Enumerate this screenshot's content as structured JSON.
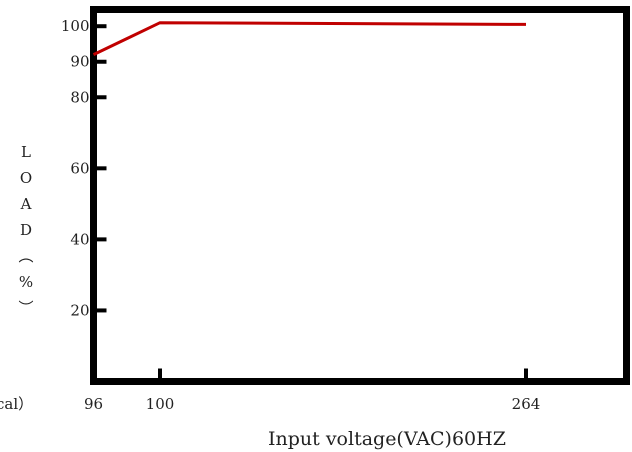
{
  "chart_data": {
    "type": "line",
    "title": "",
    "xlabel": "Input voltage(VAC)60HZ",
    "ylabel": "LOAD(%)",
    "ylabel_chars": [
      "L",
      "O",
      "A",
      "D",
      "︵",
      "%",
      "︶"
    ],
    "x_ticks": [
      96,
      100,
      264
    ],
    "y_ticks": [
      20,
      40,
      60,
      80,
      90,
      100
    ],
    "xlim": [
      96,
      302
    ],
    "ylim": [
      0,
      104
    ],
    "grid": false,
    "legend": "none",
    "clipped_left_label": "cal）",
    "series": [
      {
        "color": "#c00000",
        "points": [
          {
            "x": 96,
            "y": 92
          },
          {
            "x": 100,
            "y": 101
          },
          {
            "x": 264,
            "y": 100.5
          }
        ]
      }
    ]
  }
}
